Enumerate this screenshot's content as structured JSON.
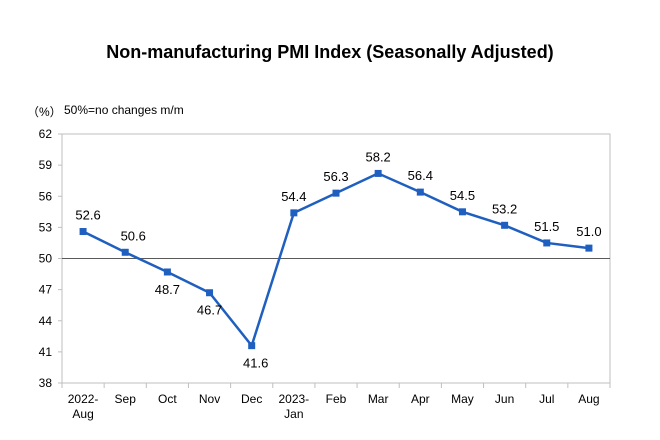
{
  "chart_data": {
    "type": "line",
    "title": "Non-manufacturing PMI Index (Seasonally Adjusted)",
    "unit_label": "（%）",
    "note": "50%=no changes m/m",
    "categories": [
      [
        "2022-",
        "Aug"
      ],
      [
        "Sep"
      ],
      [
        "Oct"
      ],
      [
        "Nov"
      ],
      [
        "Dec"
      ],
      [
        "2023-",
        "Jan"
      ],
      [
        "Feb"
      ],
      [
        "Mar"
      ],
      [
        "Apr"
      ],
      [
        "May"
      ],
      [
        "Jun"
      ],
      [
        "Jul"
      ],
      [
        "Aug"
      ]
    ],
    "series": [
      {
        "values": [
          52.6,
          50.6,
          48.7,
          46.7,
          41.6,
          54.4,
          56.3,
          58.2,
          56.4,
          54.5,
          53.2,
          51.5,
          51.0
        ],
        "color": "#1f5fbf"
      }
    ],
    "data_labels": [
      "52.6",
      "50.6",
      "48.7",
      "46.7",
      "41.6",
      "54.4",
      "56.3",
      "58.2",
      "56.4",
      "54.5",
      "53.2",
      "51.5",
      "51.0"
    ],
    "ylim": [
      38,
      62
    ],
    "yticks": [
      38,
      41,
      44,
      47,
      50,
      53,
      56,
      59,
      62
    ],
    "reference_line": 50,
    "grid": false,
    "legend": "none"
  }
}
